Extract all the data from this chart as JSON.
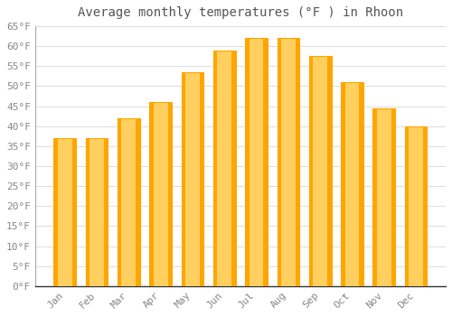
{
  "title": "Average monthly temperatures (°F ) in Rhoon",
  "months": [
    "Jan",
    "Feb",
    "Mar",
    "Apr",
    "May",
    "Jun",
    "Jul",
    "Aug",
    "Sep",
    "Oct",
    "Nov",
    "Dec"
  ],
  "values": [
    37.0,
    37.0,
    42.0,
    46.0,
    53.5,
    59.0,
    62.0,
    62.0,
    57.5,
    51.0,
    44.5,
    40.0
  ],
  "bar_color_main": "#FFA500",
  "bar_color_light": "#FFD060",
  "background_color": "#FFFFFF",
  "grid_color": "#DDDDDD",
  "text_color": "#888888",
  "title_color": "#555555",
  "ylim": [
    0,
    65
  ],
  "yticks": [
    0,
    5,
    10,
    15,
    20,
    25,
    30,
    35,
    40,
    45,
    50,
    55,
    60,
    65
  ],
  "title_fontsize": 10,
  "tick_fontsize": 8
}
